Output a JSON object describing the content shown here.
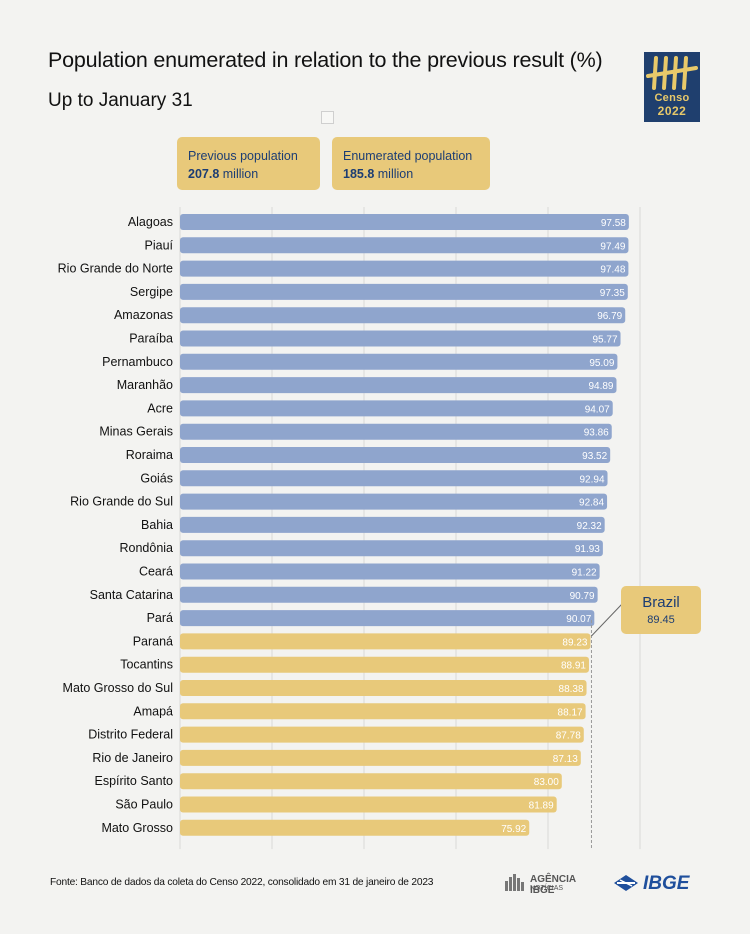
{
  "title": "Population enumerated in relation to the previous result (%)",
  "subtitle": "Up to January 31",
  "logo": {
    "line1": "Censo",
    "line2": "2022"
  },
  "previous": {
    "label": "Previous population",
    "value": "207.8",
    "unit": "million"
  },
  "enumerated": {
    "label": "Enumerated population",
    "value": "185.8",
    "unit": "million"
  },
  "brazil": {
    "label": "Brazil",
    "value": "89.45"
  },
  "source": "Fonte: Banco de dados da coleta do Censo 2022, consolidado em 31 de janeiro de 2023",
  "agencia": {
    "name": "AGÊNCIA IBGE",
    "sub": "NOTÍCIAS"
  },
  "ibge": {
    "name": "IBGE"
  },
  "colors": {
    "above": "#8fa5cd",
    "below": "#e8c97a",
    "text_dark": "#1c3d73",
    "background": "#f3f3f1"
  },
  "chart_data": {
    "type": "bar",
    "orientation": "horizontal",
    "categories": [
      "Alagoas",
      "Piauí",
      "Rio Grande do Norte",
      "Sergipe",
      "Amazonas",
      "Paraíba",
      "Pernambuco",
      "Maranhão",
      "Acre",
      "Minas Gerais",
      "Roraima",
      "Goiás",
      "Rio Grande do Sul",
      "Bahia",
      "Rondônia",
      "Ceará",
      "Santa Catarina",
      "Pará",
      "Paraná",
      "Tocantins",
      "Mato Grosso do Sul",
      "Amapá",
      "Distrito Federal",
      "Rio de Janeiro",
      "Espírito Santo",
      "São Paulo",
      "Mato Grosso"
    ],
    "values": [
      "97.58",
      "97.49",
      "97.48",
      "97.35",
      "96.79",
      "95.77",
      "95.09",
      "94.89",
      "94.07",
      "93.86",
      "93.52",
      "92.94",
      "92.84",
      "92.32",
      "91.93",
      "91.22",
      "90.79",
      "90.07",
      "89.23",
      "88.91",
      "88.38",
      "88.17",
      "87.78",
      "87.13",
      "83.00",
      "81.89",
      "75.92"
    ],
    "reference_line": 89.45,
    "xlim": [
      0,
      100
    ],
    "grid": true
  }
}
